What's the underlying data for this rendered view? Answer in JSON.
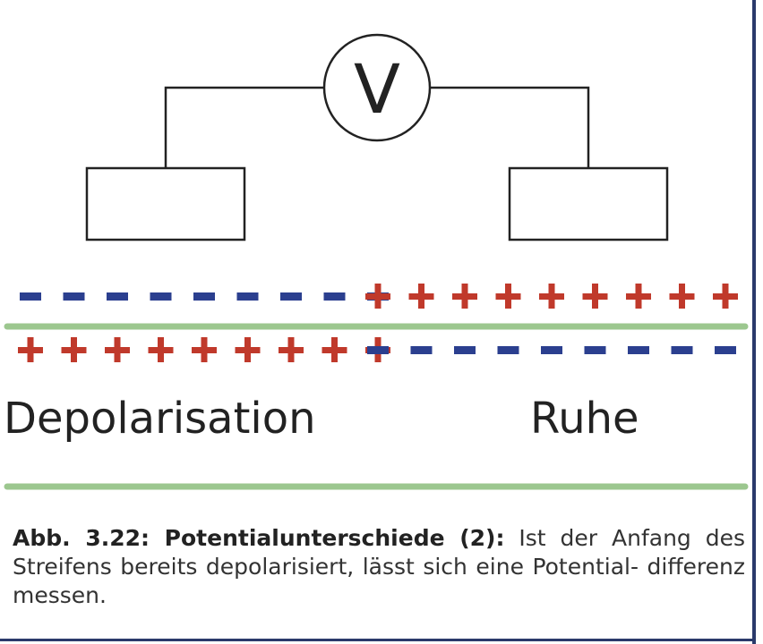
{
  "meter": {
    "symbol": "V"
  },
  "membrane": {
    "top_left_sign": "-",
    "top_left_count": 9,
    "top_right_sign": "+",
    "top_right_count": 9,
    "bottom_left_sign": "+",
    "bottom_left_count": 9,
    "bottom_right_sign": "-",
    "bottom_right_count": 9
  },
  "labels": {
    "left": "Depolarisation",
    "right": "Ruhe"
  },
  "caption": {
    "title": "Abb. 3.22: Potentialunterschiede (2):",
    "text": " Ist der Anfang des Streifens bereits depolarisiert, lässt sich eine Potential- differenz messen."
  },
  "colors": {
    "negative": "#2b3f8f",
    "positive": "#c0392b",
    "membrane": "#9cc78f",
    "line": "#222222",
    "frame": "#2b3a6b"
  }
}
